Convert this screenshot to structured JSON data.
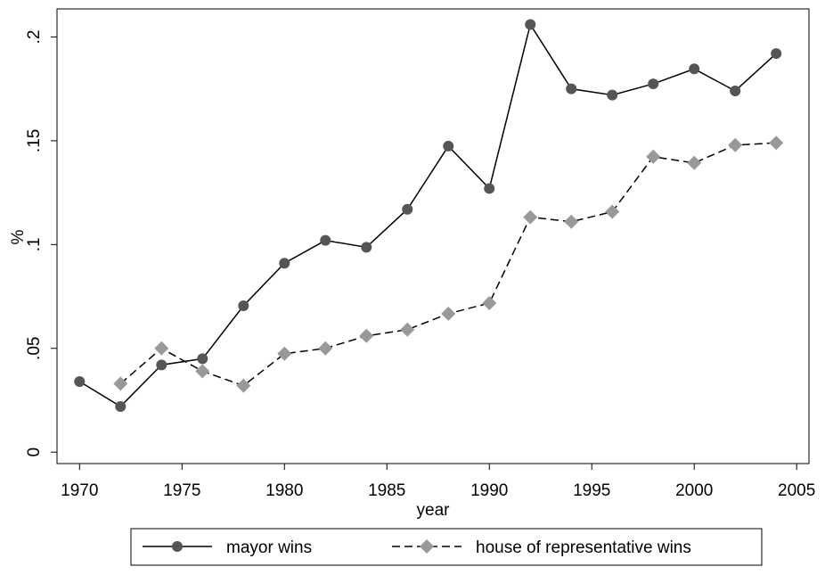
{
  "chart_data": {
    "type": "line",
    "x_label": "year",
    "y_label": "%",
    "x": [
      1970,
      1972,
      1974,
      1976,
      1978,
      1980,
      1982,
      1984,
      1986,
      1988,
      1990,
      1992,
      1994,
      1996,
      1998,
      2000,
      2002,
      2004
    ],
    "series": [
      {
        "name": "mayor wins",
        "color": "#555555",
        "marker": "circle",
        "dash": false,
        "values": [
          0.034,
          0.022,
          0.042,
          0.045,
          0.0705,
          0.091,
          0.102,
          0.0987,
          0.117,
          0.1474,
          0.127,
          0.206,
          0.175,
          0.172,
          0.1774,
          0.1846,
          0.174,
          0.192
        ]
      },
      {
        "name": "house of representative wins",
        "color": "#999999",
        "marker": "diamond",
        "dash": true,
        "values": [
          null,
          0.033,
          0.05,
          0.039,
          0.032,
          0.0474,
          0.05,
          0.056,
          0.059,
          0.0667,
          0.0718,
          0.1132,
          0.111,
          0.1158,
          0.1423,
          0.1393,
          0.1479,
          0.149
        ]
      }
    ],
    "xlim": [
      1968.9,
      2005.6
    ],
    "ylim": [
      -0.0055,
      0.2135
    ],
    "xticks": [
      1970,
      1975,
      1980,
      1985,
      1990,
      1995,
      2000,
      2005
    ],
    "yticks": [
      0,
      {
        "value": 0.05,
        "label": ".05"
      },
      {
        "value": 0.1,
        "label": ".1"
      },
      {
        "value": 0.15,
        "label": ".15"
      },
      {
        "value": 0.2,
        "label": ".2"
      }
    ],
    "grid": false
  }
}
